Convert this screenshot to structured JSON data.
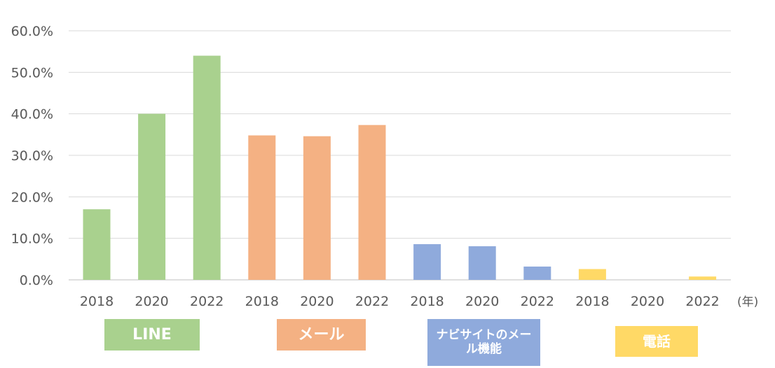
{
  "chart_data": {
    "type": "bar",
    "x": [
      "2018",
      "2020",
      "2022",
      "2018",
      "2020",
      "2022",
      "2018",
      "2020",
      "2022",
      "2018",
      "2020",
      "2022"
    ],
    "values": [
      17.0,
      40.0,
      54.0,
      34.8,
      34.6,
      37.3,
      8.6,
      8.1,
      3.2,
      2.6,
      0.0,
      0.8
    ],
    "ylim": [
      0,
      60
    ],
    "y_ticks": [
      "0.0%",
      "10.0%",
      "20.0%",
      "30.0%",
      "40.0%",
      "50.0%",
      "60.0%"
    ],
    "x_unit": "(年)",
    "grid": true,
    "groups": [
      {
        "label": "LINE",
        "color": "#a9d18e",
        "bars": [
          0,
          1,
          2
        ]
      },
      {
        "label": "メール",
        "color": "#f4b183",
        "bars": [
          3,
          4,
          5
        ]
      },
      {
        "label": "ナビサイトのメール機能",
        "color": "#8faadc",
        "bars": [
          6,
          7,
          8
        ]
      },
      {
        "label": "電話",
        "color": "#ffd966",
        "bars": [
          9,
          10,
          11
        ]
      }
    ]
  }
}
